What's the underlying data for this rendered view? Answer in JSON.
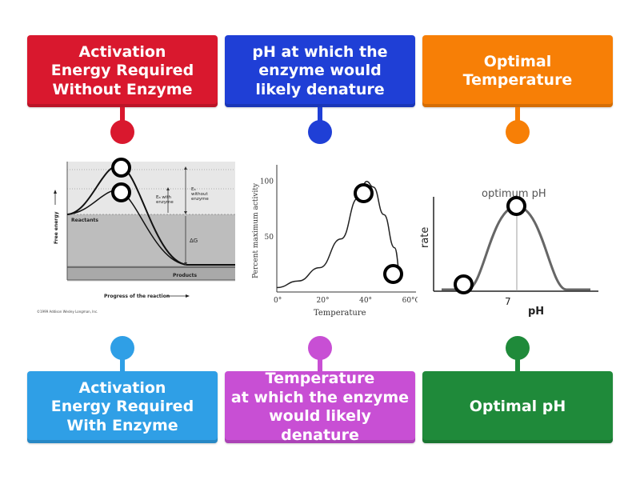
{
  "colors": {
    "red": "#d9182e",
    "blue": "#1f3fd6",
    "orange": "#f77f06",
    "skyblue": "#2f9fe6",
    "purple": "#c84fd4",
    "green": "#1f8a3a"
  },
  "cards": {
    "act_without": "Activation\nEnergy Required\nWithout Enzyme",
    "ph_denature": "pH at which the\nenzyme would\nlikely denature",
    "optimal_temp": "Optimal Temperature",
    "act_with": "Activation\nEnergy Required\nWith Enzyme",
    "temp_denature": "Temperature\nat which the enzyme\nwould likely denature",
    "optimal_ph": "Optimal pH"
  },
  "diagram_energy": {
    "ylabel": "Free energy",
    "xlabel": "Progress of the reaction",
    "reactants": "Reactants",
    "products": "Products",
    "ea_with": "Eₐ with\nenzyme",
    "ea_without": "Eₐ\nwithout\nenzyme",
    "delta_g": "ΔG",
    "copyright": "©1999 Addison Wesley Longman, Inc."
  },
  "chart_data": [
    {
      "type": "line",
      "title": "",
      "xlabel": "Temperature",
      "ylabel": "Percent maximum activity",
      "x_ticks": [
        "0°",
        "20°",
        "40°",
        "60°C"
      ],
      "y_ticks": [
        "50",
        "100"
      ],
      "x": [
        0,
        10,
        20,
        30,
        38,
        42,
        45,
        50,
        55,
        58
      ],
      "y": [
        4,
        10,
        22,
        48,
        85,
        100,
        95,
        70,
        40,
        12
      ],
      "xlim": [
        0,
        65
      ],
      "ylim": [
        0,
        115
      ]
    },
    {
      "type": "line",
      "title": "",
      "xlabel": "pH",
      "ylabel": "rate",
      "annotation": "optimum pH",
      "x_ticks": [
        "7"
      ]
    }
  ]
}
